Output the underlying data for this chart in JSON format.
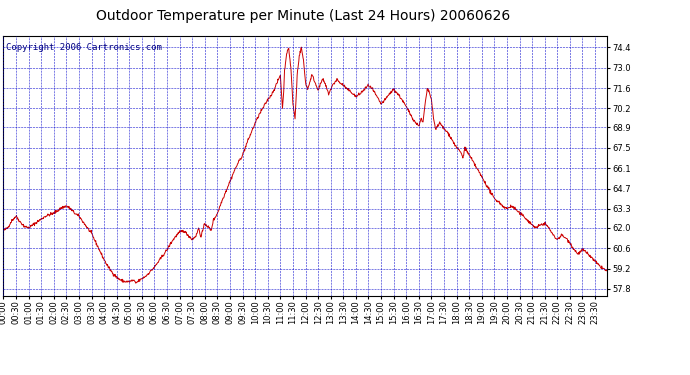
{
  "title": "Outdoor Temperature per Minute (Last 24 Hours) 20060626",
  "copyright": "Copyright 2006 Cartronics.com",
  "background_color": "#ffffff",
  "plot_bg_color": "#ffffff",
  "line_color": "#cc0000",
  "grid_color": "#0000cc",
  "border_color": "#000000",
  "yticks": [
    57.8,
    59.2,
    60.6,
    62.0,
    63.3,
    64.7,
    66.1,
    67.5,
    68.9,
    70.2,
    71.6,
    73.0,
    74.4
  ],
  "ylim": [
    57.3,
    75.2
  ],
  "title_fontsize": 10,
  "axis_fontsize": 6,
  "copyright_fontsize": 6.5,
  "keypoints": [
    [
      0,
      61.8
    ],
    [
      10,
      62.0
    ],
    [
      20,
      62.5
    ],
    [
      30,
      62.8
    ],
    [
      40,
      62.4
    ],
    [
      50,
      62.1
    ],
    [
      60,
      62.0
    ],
    [
      70,
      62.2
    ],
    [
      80,
      62.4
    ],
    [
      90,
      62.6
    ],
    [
      100,
      62.8
    ],
    [
      110,
      62.9
    ],
    [
      120,
      63.0
    ],
    [
      130,
      63.2
    ],
    [
      140,
      63.4
    ],
    [
      150,
      63.5
    ],
    [
      160,
      63.3
    ],
    [
      170,
      63.0
    ],
    [
      180,
      62.8
    ],
    [
      190,
      62.4
    ],
    [
      200,
      62.0
    ],
    [
      210,
      61.6
    ],
    [
      220,
      61.0
    ],
    [
      230,
      60.4
    ],
    [
      240,
      59.8
    ],
    [
      250,
      59.3
    ],
    [
      260,
      58.9
    ],
    [
      270,
      58.6
    ],
    [
      280,
      58.4
    ],
    [
      290,
      58.3
    ],
    [
      300,
      58.3
    ],
    [
      310,
      58.4
    ],
    [
      315,
      58.2
    ],
    [
      320,
      58.3
    ],
    [
      330,
      58.5
    ],
    [
      340,
      58.7
    ],
    [
      350,
      59.0
    ],
    [
      360,
      59.3
    ],
    [
      370,
      59.7
    ],
    [
      380,
      60.1
    ],
    [
      390,
      60.5
    ],
    [
      400,
      61.0
    ],
    [
      410,
      61.4
    ],
    [
      420,
      61.7
    ],
    [
      430,
      61.8
    ],
    [
      440,
      61.5
    ],
    [
      450,
      61.2
    ],
    [
      460,
      61.5
    ],
    [
      465,
      62.0
    ],
    [
      470,
      61.4
    ],
    [
      475,
      61.8
    ],
    [
      480,
      62.3
    ],
    [
      490,
      62.0
    ],
    [
      495,
      61.8
    ],
    [
      500,
      62.5
    ],
    [
      510,
      63.0
    ],
    [
      520,
      63.8
    ],
    [
      530,
      64.5
    ],
    [
      540,
      65.2
    ],
    [
      550,
      65.9
    ],
    [
      560,
      66.5
    ],
    [
      570,
      67.0
    ],
    [
      580,
      67.8
    ],
    [
      590,
      68.5
    ],
    [
      600,
      69.2
    ],
    [
      610,
      69.8
    ],
    [
      620,
      70.3
    ],
    [
      630,
      70.8
    ],
    [
      640,
      71.2
    ],
    [
      650,
      71.8
    ],
    [
      660,
      72.5
    ],
    [
      665,
      70.2
    ],
    [
      668,
      71.5
    ],
    [
      670,
      72.8
    ],
    [
      675,
      74.0
    ],
    [
      680,
      74.3
    ],
    [
      685,
      73.0
    ],
    [
      690,
      70.5
    ],
    [
      695,
      69.5
    ],
    [
      698,
      71.0
    ],
    [
      700,
      72.5
    ],
    [
      705,
      73.8
    ],
    [
      710,
      74.4
    ],
    [
      715,
      73.5
    ],
    [
      720,
      72.0
    ],
    [
      725,
      71.5
    ],
    [
      730,
      72.0
    ],
    [
      735,
      72.5
    ],
    [
      740,
      72.2
    ],
    [
      745,
      71.8
    ],
    [
      750,
      71.5
    ],
    [
      755,
      71.8
    ],
    [
      760,
      72.2
    ],
    [
      765,
      72.0
    ],
    [
      770,
      71.6
    ],
    [
      775,
      71.2
    ],
    [
      780,
      71.5
    ],
    [
      785,
      71.8
    ],
    [
      790,
      72.0
    ],
    [
      795,
      72.2
    ],
    [
      800,
      72.0
    ],
    [
      810,
      71.8
    ],
    [
      820,
      71.5
    ],
    [
      830,
      71.3
    ],
    [
      840,
      71.0
    ],
    [
      850,
      71.2
    ],
    [
      860,
      71.5
    ],
    [
      870,
      71.8
    ],
    [
      880,
      71.5
    ],
    [
      890,
      71.0
    ],
    [
      900,
      70.5
    ],
    [
      910,
      70.8
    ],
    [
      920,
      71.2
    ],
    [
      930,
      71.5
    ],
    [
      940,
      71.2
    ],
    [
      950,
      70.8
    ],
    [
      960,
      70.3
    ],
    [
      970,
      69.8
    ],
    [
      980,
      69.3
    ],
    [
      990,
      69.0
    ],
    [
      995,
      69.5
    ],
    [
      1000,
      69.2
    ],
    [
      1005,
      70.5
    ],
    [
      1010,
      71.5
    ],
    [
      1015,
      71.3
    ],
    [
      1020,
      70.8
    ],
    [
      1025,
      69.5
    ],
    [
      1030,
      68.8
    ],
    [
      1040,
      69.2
    ],
    [
      1050,
      68.8
    ],
    [
      1060,
      68.5
    ],
    [
      1070,
      68.0
    ],
    [
      1080,
      67.5
    ],
    [
      1090,
      67.2
    ],
    [
      1095,
      66.8
    ],
    [
      1100,
      67.5
    ],
    [
      1110,
      67.0
    ],
    [
      1120,
      66.5
    ],
    [
      1130,
      66.0
    ],
    [
      1140,
      65.5
    ],
    [
      1150,
      65.0
    ],
    [
      1160,
      64.5
    ],
    [
      1170,
      64.0
    ],
    [
      1180,
      63.8
    ],
    [
      1190,
      63.5
    ],
    [
      1200,
      63.3
    ],
    [
      1210,
      63.5
    ],
    [
      1220,
      63.3
    ],
    [
      1230,
      63.0
    ],
    [
      1240,
      62.8
    ],
    [
      1250,
      62.5
    ],
    [
      1260,
      62.2
    ],
    [
      1270,
      62.0
    ],
    [
      1280,
      62.2
    ],
    [
      1290,
      62.3
    ],
    [
      1300,
      62.0
    ],
    [
      1310,
      61.5
    ],
    [
      1320,
      61.2
    ],
    [
      1330,
      61.5
    ],
    [
      1340,
      61.3
    ],
    [
      1350,
      61.0
    ],
    [
      1360,
      60.5
    ],
    [
      1370,
      60.2
    ],
    [
      1380,
      60.5
    ],
    [
      1390,
      60.3
    ],
    [
      1400,
      60.0
    ],
    [
      1410,
      59.7
    ],
    [
      1420,
      59.4
    ],
    [
      1430,
      59.2
    ],
    [
      1439,
      59.0
    ]
  ]
}
